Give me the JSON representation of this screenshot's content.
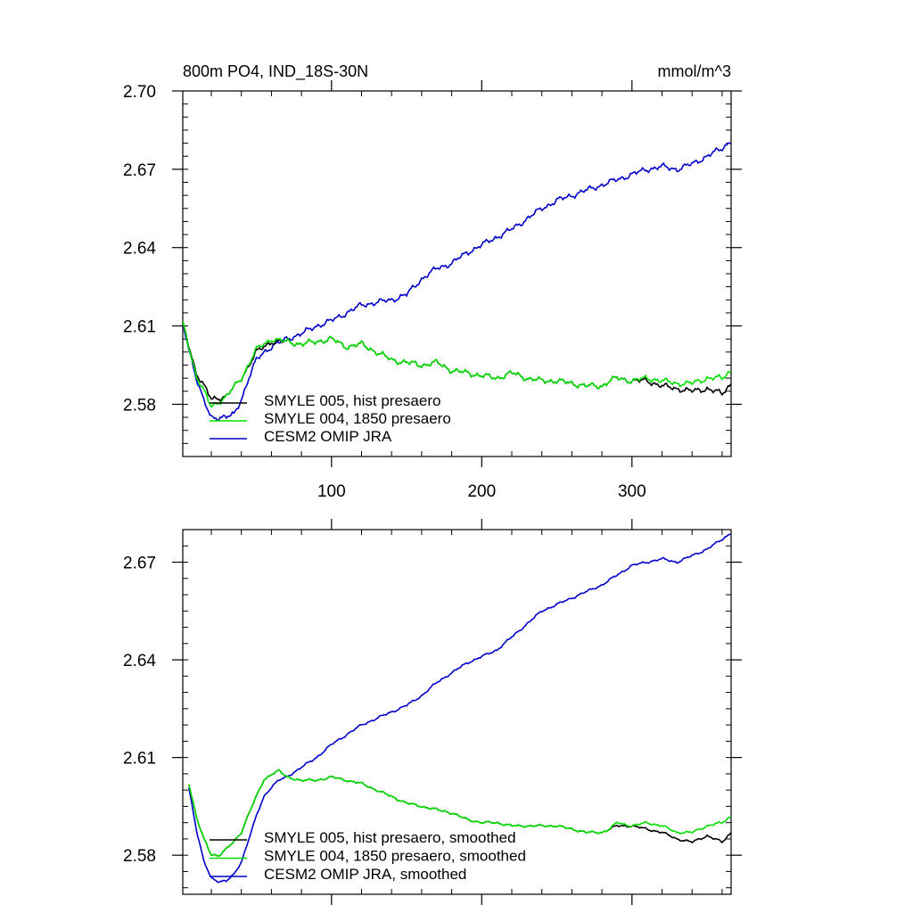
{
  "chart_data": [
    {
      "type": "line",
      "title": "800m PO4, IND_18S-30N",
      "units": "mmol/m^3",
      "xlim": [
        1,
        366
      ],
      "ylim": [
        2.56,
        2.7
      ],
      "xticks": [
        100,
        200,
        300
      ],
      "yticks": [
        2.58,
        2.61,
        2.64,
        2.67,
        2.7
      ],
      "ytick_labels": [
        "2.58",
        "2.61",
        "2.64",
        "2.67",
        "2.70"
      ],
      "x_tick_labels_shown": true,
      "legend": "bottom-left",
      "series": [
        {
          "name": "SMYLE 005, hist presaero",
          "color": "#000000",
          "x": [
            1,
            10,
            20,
            30,
            40,
            50,
            60,
            70,
            80,
            90,
            100,
            110,
            120,
            130,
            140,
            150,
            160,
            170,
            180,
            190,
            200,
            210,
            220,
            230,
            240,
            250,
            260,
            270,
            280,
            285,
            290,
            300,
            310,
            320,
            330,
            340,
            350,
            360,
            366
          ],
          "y": [
            2.611,
            2.592,
            2.582,
            2.583,
            2.59,
            2.6,
            2.604,
            2.604,
            2.603,
            2.604,
            2.605,
            2.602,
            2.603,
            2.6,
            2.597,
            2.596,
            2.595,
            2.596,
            2.593,
            2.592,
            2.591,
            2.59,
            2.592,
            2.59,
            2.589,
            2.589,
            2.588,
            2.587,
            2.587,
            2.589,
            2.59,
            2.589,
            2.589,
            2.587,
            2.586,
            2.585,
            2.586,
            2.584,
            2.588
          ]
        },
        {
          "name": "SMYLE 004, 1850 presaero",
          "color": "#00e000",
          "x": [
            1,
            10,
            20,
            30,
            40,
            50,
            60,
            70,
            80,
            90,
            100,
            110,
            120,
            130,
            140,
            150,
            160,
            170,
            180,
            190,
            200,
            210,
            220,
            230,
            240,
            250,
            260,
            270,
            280,
            285,
            290,
            300,
            310,
            320,
            330,
            340,
            350,
            360,
            366
          ],
          "y": [
            2.611,
            2.591,
            2.579,
            2.583,
            2.59,
            2.601,
            2.605,
            2.604,
            2.603,
            2.604,
            2.605,
            2.602,
            2.603,
            2.6,
            2.597,
            2.596,
            2.595,
            2.596,
            2.593,
            2.592,
            2.591,
            2.59,
            2.592,
            2.59,
            2.589,
            2.589,
            2.588,
            2.587,
            2.587,
            2.589,
            2.59,
            2.589,
            2.59,
            2.589,
            2.588,
            2.588,
            2.59,
            2.59,
            2.593
          ]
        },
        {
          "name": "CESM2 OMIP JRA",
          "color": "#0000cc",
          "x": [
            1,
            10,
            15,
            20,
            25,
            30,
            35,
            40,
            45,
            50,
            55,
            60,
            70,
            80,
            90,
            100,
            110,
            120,
            130,
            140,
            150,
            160,
            170,
            180,
            190,
            200,
            210,
            220,
            230,
            240,
            250,
            260,
            270,
            280,
            290,
            300,
            310,
            320,
            330,
            340,
            350,
            360,
            366
          ],
          "y": [
            2.611,
            2.59,
            2.581,
            2.575,
            2.575,
            2.575,
            2.576,
            2.582,
            2.59,
            2.597,
            2.6,
            2.602,
            2.605,
            2.607,
            2.61,
            2.612,
            2.615,
            2.618,
            2.619,
            2.62,
            2.622,
            2.628,
            2.632,
            2.634,
            2.638,
            2.641,
            2.644,
            2.647,
            2.651,
            2.655,
            2.658,
            2.66,
            2.662,
            2.664,
            2.666,
            2.668,
            2.67,
            2.671,
            2.67,
            2.672,
            2.675,
            2.678,
            2.681
          ]
        }
      ]
    },
    {
      "type": "line",
      "title": "",
      "units": "",
      "xlim": [
        1,
        366
      ],
      "ylim": [
        2.568,
        2.68
      ],
      "xticks": [
        100,
        200,
        300
      ],
      "yticks": [
        2.58,
        2.61,
        2.64,
        2.67
      ],
      "ytick_labels": [
        "2.58",
        "2.61",
        "2.64",
        "2.67"
      ],
      "x_tick_labels_shown": false,
      "legend": "bottom-left",
      "series": [
        {
          "name": "SMYLE 005, hist presaero, smoothed",
          "color": "#000000",
          "x": [
            5,
            10,
            15,
            20,
            25,
            30,
            35,
            40,
            45,
            50,
            55,
            60,
            65,
            70,
            80,
            90,
            100,
            110,
            120,
            130,
            140,
            150,
            160,
            170,
            180,
            190,
            200,
            210,
            220,
            230,
            240,
            250,
            260,
            270,
            280,
            285,
            290,
            300,
            310,
            320,
            330,
            340,
            350,
            360,
            366
          ],
          "y": [
            2.602,
            2.592,
            2.585,
            2.58,
            2.58,
            2.582,
            2.584,
            2.587,
            2.593,
            2.598,
            2.603,
            2.605,
            2.606,
            2.604,
            2.603,
            2.603,
            2.604,
            2.603,
            2.602,
            2.6,
            2.598,
            2.596,
            2.595,
            2.594,
            2.593,
            2.591,
            2.59,
            2.59,
            2.589,
            2.589,
            2.589,
            2.589,
            2.588,
            2.587,
            2.587,
            2.588,
            2.589,
            2.589,
            2.588,
            2.587,
            2.585,
            2.584,
            2.586,
            2.584,
            2.587
          ]
        },
        {
          "name": "SMYLE 004, 1850 presaero, smoothed",
          "color": "#00e000",
          "x": [
            5,
            10,
            15,
            20,
            25,
            30,
            35,
            40,
            45,
            50,
            55,
            60,
            65,
            70,
            80,
            90,
            100,
            110,
            120,
            130,
            140,
            150,
            160,
            170,
            180,
            190,
            200,
            210,
            220,
            230,
            240,
            250,
            260,
            270,
            280,
            285,
            290,
            300,
            310,
            320,
            330,
            340,
            350,
            360,
            366
          ],
          "y": [
            2.602,
            2.592,
            2.585,
            2.58,
            2.58,
            2.582,
            2.584,
            2.587,
            2.593,
            2.598,
            2.603,
            2.605,
            2.606,
            2.604,
            2.603,
            2.603,
            2.604,
            2.603,
            2.602,
            2.6,
            2.598,
            2.596,
            2.595,
            2.594,
            2.593,
            2.591,
            2.59,
            2.59,
            2.589,
            2.589,
            2.589,
            2.589,
            2.588,
            2.587,
            2.587,
            2.588,
            2.59,
            2.589,
            2.59,
            2.589,
            2.587,
            2.587,
            2.589,
            2.59,
            2.592
          ]
        },
        {
          "name": "CESM2 OMIP JRA, smoothed",
          "color": "#0000cc",
          "x": [
            5,
            10,
            15,
            20,
            25,
            30,
            35,
            40,
            45,
            50,
            55,
            60,
            65,
            70,
            80,
            90,
            100,
            110,
            120,
            130,
            140,
            150,
            160,
            170,
            180,
            190,
            200,
            210,
            220,
            230,
            240,
            250,
            260,
            270,
            280,
            290,
            300,
            310,
            320,
            330,
            340,
            350,
            360,
            366
          ],
          "y": [
            2.601,
            2.588,
            2.578,
            2.573,
            2.572,
            2.572,
            2.574,
            2.578,
            2.585,
            2.592,
            2.598,
            2.601,
            2.603,
            2.604,
            2.607,
            2.61,
            2.614,
            2.617,
            2.62,
            2.622,
            2.624,
            2.626,
            2.629,
            2.633,
            2.636,
            2.639,
            2.641,
            2.643,
            2.647,
            2.651,
            2.655,
            2.657,
            2.659,
            2.661,
            2.663,
            2.666,
            2.669,
            2.67,
            2.671,
            2.67,
            2.672,
            2.674,
            2.677,
            2.679
          ]
        }
      ]
    }
  ]
}
